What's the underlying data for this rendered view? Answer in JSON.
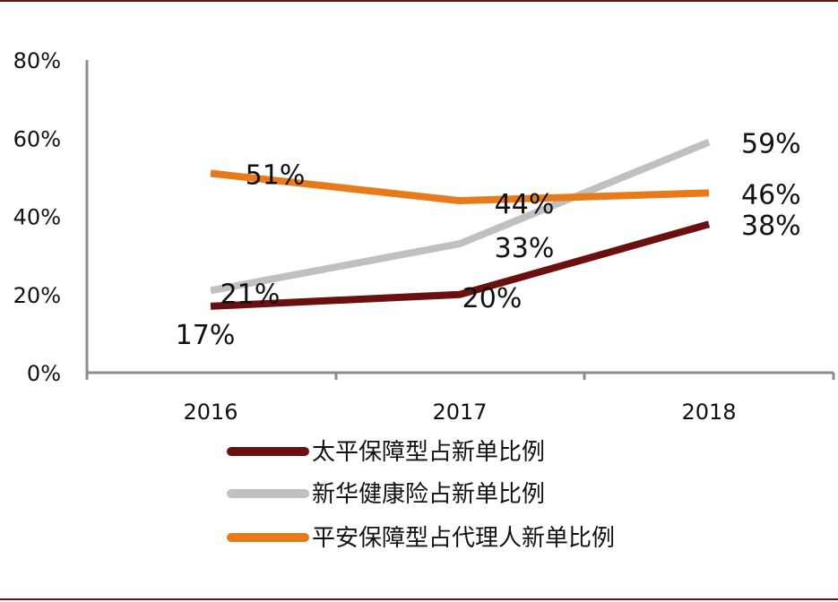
{
  "chart_data": {
    "type": "line",
    "categories": [
      "2016",
      "2017",
      "2018"
    ],
    "ylim": [
      0,
      80
    ],
    "y_ticks": [
      "0%",
      "20%",
      "40%",
      "60%",
      "80%"
    ],
    "grid": false,
    "legend_position": "bottom",
    "series": [
      {
        "name": "太平保障型占新单比例",
        "color": "#6b0f0f",
        "values": [
          17,
          20,
          38
        ],
        "labels": [
          "17%",
          "20%",
          "38%"
        ]
      },
      {
        "name": "新华健康险占新单比例",
        "color": "#c0c0c0",
        "values": [
          21,
          33,
          59
        ],
        "labels": [
          "21%",
          "33%",
          "59%"
        ]
      },
      {
        "name": "平安保障型占代理人新单比例",
        "color": "#e87a1c",
        "values": [
          51,
          44,
          46
        ],
        "labels": [
          "51%",
          "44%",
          "46%"
        ]
      }
    ]
  }
}
